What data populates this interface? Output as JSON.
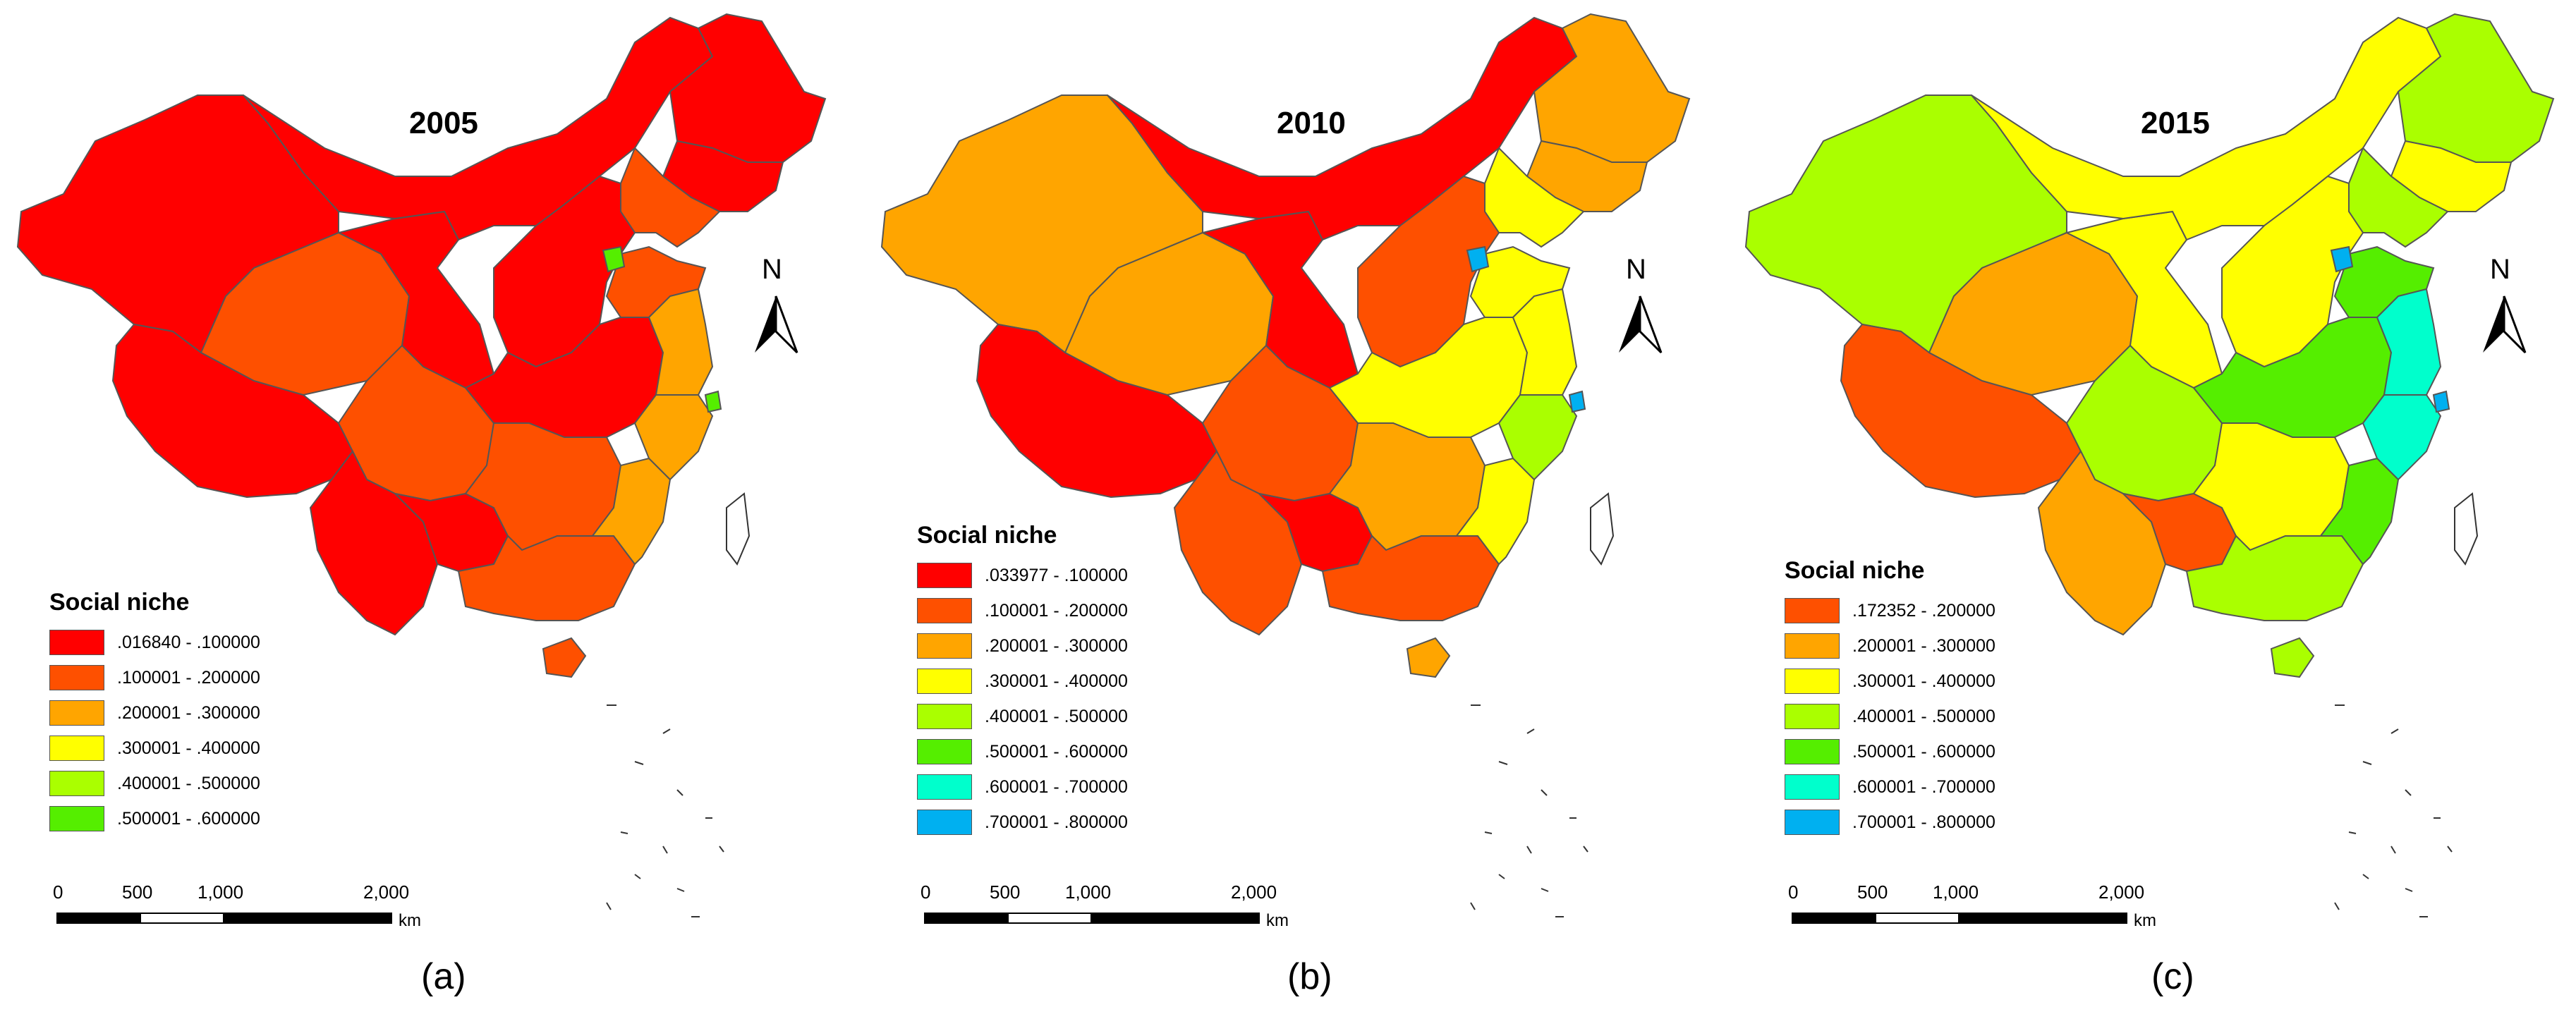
{
  "colors": {
    "red": "#ff0000",
    "orangered": "#fe5000",
    "orange": "#ffa500",
    "yellow": "#ffff00",
    "yellowgreen": "#aaff00",
    "green": "#55ee00",
    "aqua": "#00ffcc",
    "blue": "#00b0f0",
    "boundary": "#555555"
  },
  "panels": [
    {
      "title": "2005",
      "caption": "(a)",
      "legend": {
        "title": "Social niche",
        "items": [
          {
            "label": ".016840 - .100000",
            "color": "#ff0000"
          },
          {
            "label": ".100001 - .200000",
            "color": "#fe5000"
          },
          {
            "label": ".200001 - .300000",
            "color": "#ffa500"
          },
          {
            "label": ".300001 - .400000",
            "color": "#ffff00"
          },
          {
            "label": ".400001 - .500000",
            "color": "#aaff00"
          },
          {
            "label": ".500001 - .600000",
            "color": "#55ee00"
          }
        ]
      },
      "regions": {
        "xinjiang": "#ff0000",
        "tibet": "#ff0000",
        "qinghai": "#fe5000",
        "gansu": "#ff0000",
        "inner_mongolia": "#ff0000",
        "heilongjiang": "#ff0000",
        "jilin": "#ff0000",
        "liaoning": "#fe5000",
        "north": "#ff0000",
        "shandong": "#fe5000",
        "sichuan": "#fe5000",
        "central": "#ff0000",
        "yunnan": "#ff0000",
        "guizhou": "#ff0000",
        "south_central": "#fe5000",
        "guangdong": "#fe5000",
        "fujian": "#ffa500",
        "jiangsu": "#ffa500",
        "zhejiang": "#ffa500",
        "hainan": "#fe5000",
        "beijing": "#55ee00",
        "shanghai": "#55ee00"
      }
    },
    {
      "title": "2010",
      "caption": "(b)",
      "legend": {
        "title": "Social niche",
        "items": [
          {
            "label": ".033977 - .100000",
            "color": "#ff0000"
          },
          {
            "label": ".100001 - .200000",
            "color": "#fe5000"
          },
          {
            "label": ".200001 - .300000",
            "color": "#ffa500"
          },
          {
            "label": ".300001 - .400000",
            "color": "#ffff00"
          },
          {
            "label": ".400001 - .500000",
            "color": "#aaff00"
          },
          {
            "label": ".500001 - .600000",
            "color": "#55ee00"
          },
          {
            "label": ".600001 - .700000",
            "color": "#00ffcc"
          },
          {
            "label": ".700001 - .800000",
            "color": "#00b0f0"
          }
        ]
      },
      "regions": {
        "xinjiang": "#ffa500",
        "tibet": "#ff0000",
        "qinghai": "#ffa500",
        "gansu": "#ff0000",
        "inner_mongolia": "#ff0000",
        "heilongjiang": "#ffa500",
        "jilin": "#ffa500",
        "liaoning": "#ffff00",
        "north": "#fe5000",
        "shandong": "#ffff00",
        "sichuan": "#fe5000",
        "central": "#ffff00",
        "yunnan": "#fe5000",
        "guizhou": "#ff0000",
        "south_central": "#ffa500",
        "guangdong": "#fe5000",
        "fujian": "#ffff00",
        "jiangsu": "#ffff00",
        "zhejiang": "#aaff00",
        "hainan": "#ffa500",
        "beijing": "#00b0f0",
        "shanghai": "#00b0f0"
      }
    },
    {
      "title": "2015",
      "caption": "(c)",
      "legend": {
        "title": "Social niche",
        "items": [
          {
            "label": ".172352 - .200000",
            "color": "#fe5000"
          },
          {
            "label": ".200001 - .300000",
            "color": "#ffa500"
          },
          {
            "label": ".300001 - .400000",
            "color": "#ffff00"
          },
          {
            "label": ".400001 - .500000",
            "color": "#aaff00"
          },
          {
            "label": ".500001 - .600000",
            "color": "#55ee00"
          },
          {
            "label": ".600001 - .700000",
            "color": "#00ffcc"
          },
          {
            "label": ".700001 - .800000",
            "color": "#00b0f0"
          }
        ]
      },
      "regions": {
        "xinjiang": "#aaff00",
        "tibet": "#fe5000",
        "qinghai": "#ffa500",
        "gansu": "#ffff00",
        "inner_mongolia": "#ffff00",
        "heilongjiang": "#aaff00",
        "jilin": "#ffff00",
        "liaoning": "#aaff00",
        "north": "#ffff00",
        "shandong": "#55ee00",
        "sichuan": "#aaff00",
        "central": "#55ee00",
        "yunnan": "#ffa500",
        "guizhou": "#fe5000",
        "south_central": "#ffff00",
        "guangdong": "#aaff00",
        "fujian": "#55ee00",
        "jiangsu": "#00ffcc",
        "zhejiang": "#00ffcc",
        "hainan": "#aaff00",
        "beijing": "#00b0f0",
        "shanghai": "#00b0f0"
      }
    }
  ],
  "north_arrow": {
    "label": "N"
  },
  "scale_bar": {
    "ticks": [
      "0",
      "500",
      "1,000",
      "2,000"
    ],
    "unit": "km"
  }
}
